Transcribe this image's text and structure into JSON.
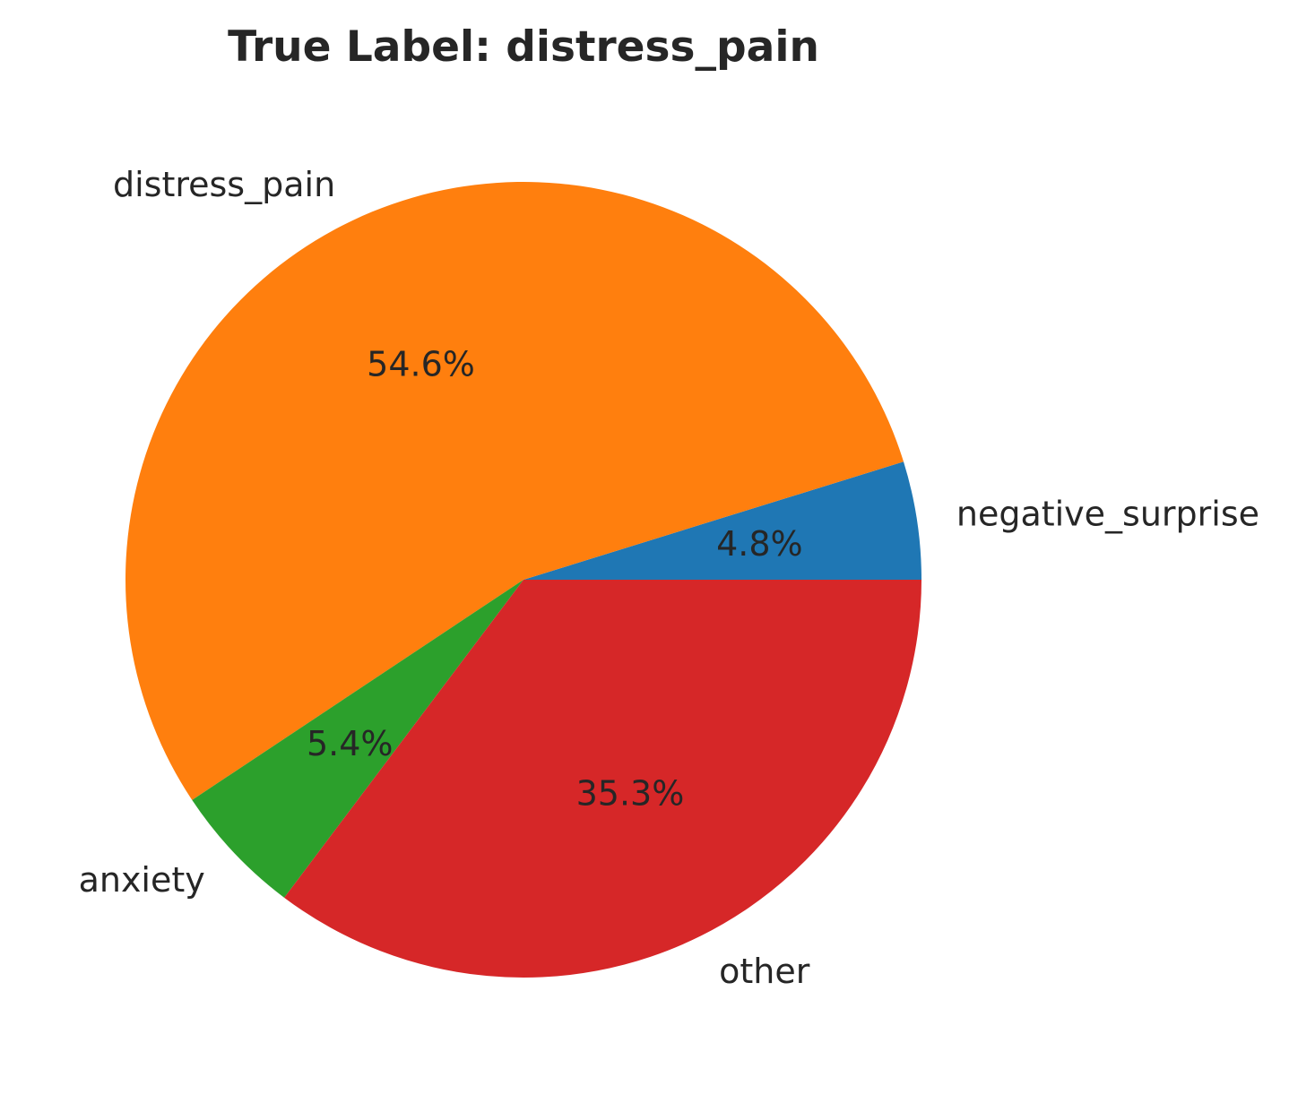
{
  "chart_data": {
    "type": "pie",
    "title": "True Label: distress_pain",
    "start_angle_deg": 0,
    "direction": "counterclockwise",
    "slices": [
      {
        "label": "negative_surprise",
        "value": 4.8,
        "pct_text": "4.8%",
        "color": "#1f77b4"
      },
      {
        "label": "distress_pain",
        "value": 54.6,
        "pct_text": "54.6%",
        "color": "#ff7f0e"
      },
      {
        "label": "anxiety",
        "value": 5.4,
        "pct_text": "5.4%",
        "color": "#2ca02c"
      },
      {
        "label": "other",
        "value": 35.3,
        "pct_text": "35.3%",
        "color": "#d62728"
      }
    ]
  }
}
